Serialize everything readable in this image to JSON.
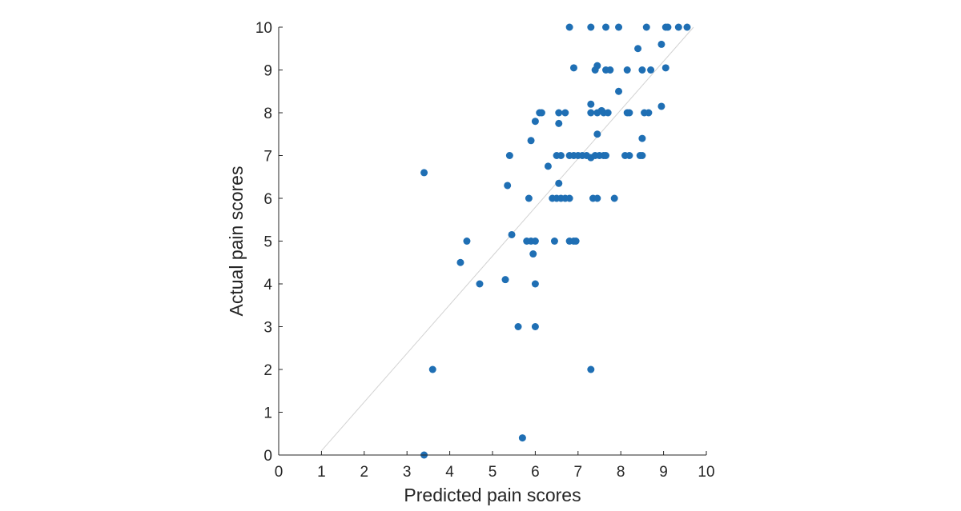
{
  "chart_data": {
    "type": "scatter",
    "title": "",
    "xlabel": "Predicted pain scores",
    "ylabel": "Actual pain scores",
    "xlim": [
      0,
      10
    ],
    "ylim": [
      0,
      10
    ],
    "x_ticks": [
      "0",
      "1",
      "2",
      "3",
      "4",
      "5",
      "6",
      "7",
      "8",
      "9",
      "10"
    ],
    "y_ticks": [
      "0",
      "1",
      "2",
      "3",
      "4",
      "5",
      "6",
      "7",
      "8",
      "9",
      "10"
    ],
    "grid": false,
    "legend": "none",
    "marker_color": "#1f6fb4",
    "reference_line_color": "#d2d2d2",
    "reference_line": {
      "x": [
        1.0,
        9.7
      ],
      "y": [
        0.1,
        10.0
      ]
    },
    "series": [
      {
        "points": [
          [
            3.4,
            0.0
          ],
          [
            5.7,
            0.4
          ],
          [
            3.6,
            2.0
          ],
          [
            7.3,
            2.0
          ],
          [
            5.6,
            3.0
          ],
          [
            6.0,
            3.0
          ],
          [
            4.7,
            4.0
          ],
          [
            5.3,
            4.1
          ],
          [
            6.0,
            4.0
          ],
          [
            4.25,
            4.5
          ],
          [
            5.95,
            4.7
          ],
          [
            4.4,
            5.0
          ],
          [
            5.45,
            5.15
          ],
          [
            5.8,
            5.0
          ],
          [
            5.9,
            5.0
          ],
          [
            6.0,
            5.0
          ],
          [
            6.45,
            5.0
          ],
          [
            6.8,
            5.0
          ],
          [
            6.9,
            5.0
          ],
          [
            6.95,
            5.0
          ],
          [
            3.4,
            6.6
          ],
          [
            5.35,
            6.3
          ],
          [
            5.85,
            6.0
          ],
          [
            6.4,
            6.0
          ],
          [
            6.5,
            6.0
          ],
          [
            6.6,
            6.0
          ],
          [
            6.7,
            6.0
          ],
          [
            6.8,
            6.0
          ],
          [
            6.55,
            6.35
          ],
          [
            7.35,
            6.0
          ],
          [
            7.45,
            6.0
          ],
          [
            7.85,
            6.0
          ],
          [
            6.3,
            6.75
          ],
          [
            5.4,
            7.0
          ],
          [
            6.5,
            7.0
          ],
          [
            6.6,
            7.0
          ],
          [
            6.8,
            7.0
          ],
          [
            6.9,
            7.0
          ],
          [
            7.0,
            7.0
          ],
          [
            7.1,
            7.0
          ],
          [
            7.2,
            7.0
          ],
          [
            7.3,
            6.95
          ],
          [
            7.4,
            7.0
          ],
          [
            7.5,
            7.0
          ],
          [
            7.6,
            7.0
          ],
          [
            7.65,
            7.0
          ],
          [
            8.1,
            7.0
          ],
          [
            8.2,
            7.0
          ],
          [
            8.45,
            7.0
          ],
          [
            8.5,
            7.0
          ],
          [
            8.5,
            7.4
          ],
          [
            7.45,
            7.5
          ],
          [
            5.9,
            7.35
          ],
          [
            6.0,
            7.8
          ],
          [
            6.55,
            7.75
          ],
          [
            6.1,
            8.0
          ],
          [
            6.15,
            8.0
          ],
          [
            6.55,
            8.0
          ],
          [
            6.7,
            8.0
          ],
          [
            7.3,
            8.0
          ],
          [
            7.45,
            8.0
          ],
          [
            7.55,
            8.05
          ],
          [
            7.6,
            8.0
          ],
          [
            7.7,
            8.0
          ],
          [
            7.3,
            8.2
          ],
          [
            8.15,
            8.0
          ],
          [
            8.2,
            8.0
          ],
          [
            8.55,
            8.0
          ],
          [
            8.65,
            8.0
          ],
          [
            8.95,
            8.15
          ],
          [
            7.95,
            8.5
          ],
          [
            6.9,
            9.05
          ],
          [
            7.4,
            9.0
          ],
          [
            7.45,
            9.1
          ],
          [
            7.65,
            9.0
          ],
          [
            7.75,
            9.0
          ],
          [
            8.15,
            9.0
          ],
          [
            8.5,
            9.0
          ],
          [
            8.7,
            9.0
          ],
          [
            9.05,
            9.05
          ],
          [
            8.4,
            9.5
          ],
          [
            8.95,
            9.6
          ],
          [
            6.8,
            10.0
          ],
          [
            7.3,
            10.0
          ],
          [
            7.65,
            10.0
          ],
          [
            7.95,
            10.0
          ],
          [
            8.6,
            10.0
          ],
          [
            9.05,
            10.0
          ],
          [
            9.1,
            10.0
          ],
          [
            9.35,
            10.0
          ],
          [
            9.55,
            10.0
          ]
        ]
      }
    ]
  }
}
